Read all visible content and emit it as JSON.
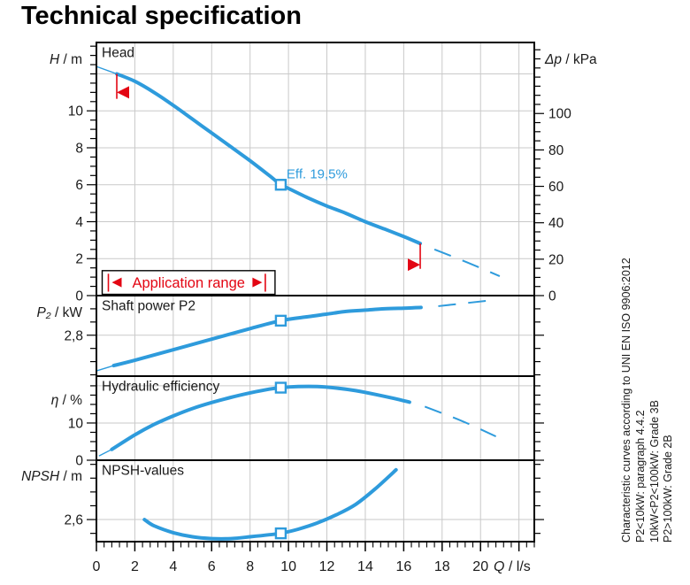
{
  "title": "Technical specification",
  "colors": {
    "curve": "#2e9bdc",
    "red": "#e30613",
    "grid": "#c9c9c9",
    "axis": "#000000",
    "text": "#1a1a1a",
    "eff_label": "#2e9bdc"
  },
  "x_axis": {
    "label_var": "Q",
    "label_unit": " / l/s",
    "min": 0,
    "max": 22.8,
    "labeled_ticks": [
      0,
      2,
      4,
      6,
      8,
      10,
      12,
      14,
      16,
      18,
      20
    ],
    "grid_ticks": [
      2,
      4,
      6,
      8,
      10,
      12,
      14,
      16,
      18,
      20,
      22
    ],
    "minor_step": 0.4
  },
  "chart_data": [
    {
      "type": "line",
      "id": "head",
      "title": "Head",
      "ylabel_var": "H",
      "ylabel_unit": " / m",
      "ylim": [
        0,
        13.7
      ],
      "yticks": [
        0,
        2,
        4,
        6,
        8,
        10
      ],
      "ygrid": [
        2,
        4,
        6,
        8,
        10,
        12
      ],
      "yminor": 0.5,
      "right_axis": {
        "label_var": "Δp",
        "label_unit": " / kPa",
        "lim": [
          0,
          139
        ],
        "ticks": [
          0,
          20,
          40,
          60,
          80,
          100
        ],
        "minor_step": 5
      },
      "series": [
        {
          "name": "head-lead",
          "style": "thin",
          "points": [
            [
              0,
              12.4
            ],
            [
              1.06,
              12.0
            ]
          ]
        },
        {
          "name": "head-solid",
          "style": "solid",
          "points": [
            [
              1.06,
              12.0
            ],
            [
              2,
              11.6
            ],
            [
              3,
              11.0
            ],
            [
              4,
              10.3
            ],
            [
              5,
              9.55
            ],
            [
              6,
              8.8
            ],
            [
              7,
              8.05
            ],
            [
              8,
              7.3
            ],
            [
              9,
              6.5
            ],
            [
              9.6,
              6.0
            ],
            [
              10,
              5.8
            ],
            [
              11,
              5.3
            ],
            [
              12,
              4.85
            ],
            [
              13,
              4.45
            ],
            [
              14,
              4.0
            ],
            [
              15,
              3.6
            ],
            [
              16,
              3.2
            ],
            [
              16.86,
              2.82
            ]
          ]
        },
        {
          "name": "head-dashed",
          "style": "dashed",
          "points": [
            [
              17.6,
              2.5
            ],
            [
              19.3,
              1.8
            ],
            [
              21,
              1.05
            ]
          ]
        }
      ],
      "duty_point": [
        9.6,
        6.0
      ],
      "eff_label": "Eff.  19,5%",
      "app_range": {
        "label": "Application range",
        "box_q": [
          0.3,
          9.3
        ],
        "box_h": [
          0.07,
          1.35
        ]
      },
      "limit_markers": [
        {
          "q": 1.06,
          "h_top": 12.0,
          "h_bot": 10.65,
          "dir": "left",
          "tri_h": 11.0
        },
        {
          "q": 16.86,
          "h_top": 2.82,
          "h_bot": 1.45,
          "dir": "right",
          "tri_h": 1.67
        }
      ]
    },
    {
      "type": "line",
      "id": "p2",
      "title": "Shaft power P2",
      "ylabel_var": "P₂",
      "ylabel_unit": " / kW",
      "ylim": [
        2.49,
        3.1
      ],
      "yticks": [
        2.8
      ],
      "ytick_labels": [
        "2,8"
      ],
      "ygrid": [
        2.8
      ],
      "yminor": 0.1,
      "series": [
        {
          "name": "p2-lead",
          "style": "thin",
          "points": [
            [
              0,
              2.53
            ],
            [
              0.9,
              2.57
            ]
          ]
        },
        {
          "name": "p2-solid",
          "style": "solid",
          "points": [
            [
              0.9,
              2.57
            ],
            [
              2,
              2.61
            ],
            [
              4,
              2.69
            ],
            [
              6,
              2.77
            ],
            [
              8,
              2.85
            ],
            [
              9.6,
              2.91
            ],
            [
              11,
              2.94
            ],
            [
              12,
              2.96
            ],
            [
              13,
              2.98
            ],
            [
              14,
              2.99
            ],
            [
              15,
              3.0
            ],
            [
              16,
              3.005
            ],
            [
              16.9,
              3.01
            ]
          ]
        },
        {
          "name": "p2-dashed",
          "style": "dashed",
          "points": [
            [
              17.8,
              3.02
            ],
            [
              20.9,
              3.07
            ]
          ]
        }
      ],
      "duty_point": [
        9.6,
        2.91
      ]
    },
    {
      "type": "line",
      "id": "eff",
      "title": "Hydraulic efficiency",
      "ylabel_var": "η",
      "ylabel_unit": " / %",
      "ylim": [
        0,
        22.6
      ],
      "yticks": [
        0,
        10
      ],
      "ygrid": [
        10,
        20
      ],
      "yminor": 2.5,
      "series": [
        {
          "name": "eff-lead",
          "style": "thin",
          "points": [
            [
              0.15,
              1.2
            ],
            [
              0.8,
              2.9
            ]
          ]
        },
        {
          "name": "eff-solid",
          "style": "solid",
          "points": [
            [
              0.8,
              2.9
            ],
            [
              2,
              6.8
            ],
            [
              3,
              9.6
            ],
            [
              4,
              11.9
            ],
            [
              5,
              13.9
            ],
            [
              6,
              15.5
            ],
            [
              7,
              16.9
            ],
            [
              8,
              18.1
            ],
            [
              9,
              19.1
            ],
            [
              9.6,
              19.5
            ],
            [
              10.5,
              19.8
            ],
            [
              11.5,
              19.8
            ],
            [
              12.5,
              19.4
            ],
            [
              13.5,
              18.7
            ],
            [
              14.5,
              17.7
            ],
            [
              15.5,
              16.6
            ],
            [
              16.3,
              15.6
            ]
          ]
        },
        {
          "name": "eff-dashed",
          "style": "dashed",
          "points": [
            [
              17.1,
              14.4
            ],
            [
              19,
              10.6
            ],
            [
              20.8,
              6.4
            ]
          ]
        }
      ],
      "duty_point": [
        9.6,
        19.5
      ]
    },
    {
      "type": "line",
      "id": "npsh",
      "title": "NPSH-values",
      "ylabel_var": "NPSH",
      "ylabel_unit": "  / m",
      "ylim": [
        2.44,
        3.03
      ],
      "yticks": [
        2.6
      ],
      "ytick_labels": [
        "2,6"
      ],
      "ygrid": [
        2.6
      ],
      "yminor": 0.1,
      "series": [
        {
          "name": "npsh-solid",
          "style": "solid",
          "points": [
            [
              2.5,
              2.6
            ],
            [
              3,
              2.555
            ],
            [
              4,
              2.505
            ],
            [
              5,
              2.475
            ],
            [
              6,
              2.462
            ],
            [
              7,
              2.462
            ],
            [
              8,
              2.475
            ],
            [
              9,
              2.49
            ],
            [
              9.6,
              2.5
            ],
            [
              10.5,
              2.53
            ],
            [
              11.5,
              2.575
            ],
            [
              12.5,
              2.635
            ],
            [
              13.5,
              2.71
            ],
            [
              14.5,
              2.82
            ],
            [
              15.6,
              2.96
            ]
          ]
        }
      ],
      "duty_point": [
        9.6,
        2.5
      ]
    }
  ],
  "sidebar": {
    "lines": [
      "Characteristic curves according to UNI EN ISO 9906:2012",
      "P2<10kW:  paragraph 4.4.2",
      "10kW<P2<100kW: Grade 3B",
      "P2>100kW: Grade 2B"
    ]
  }
}
